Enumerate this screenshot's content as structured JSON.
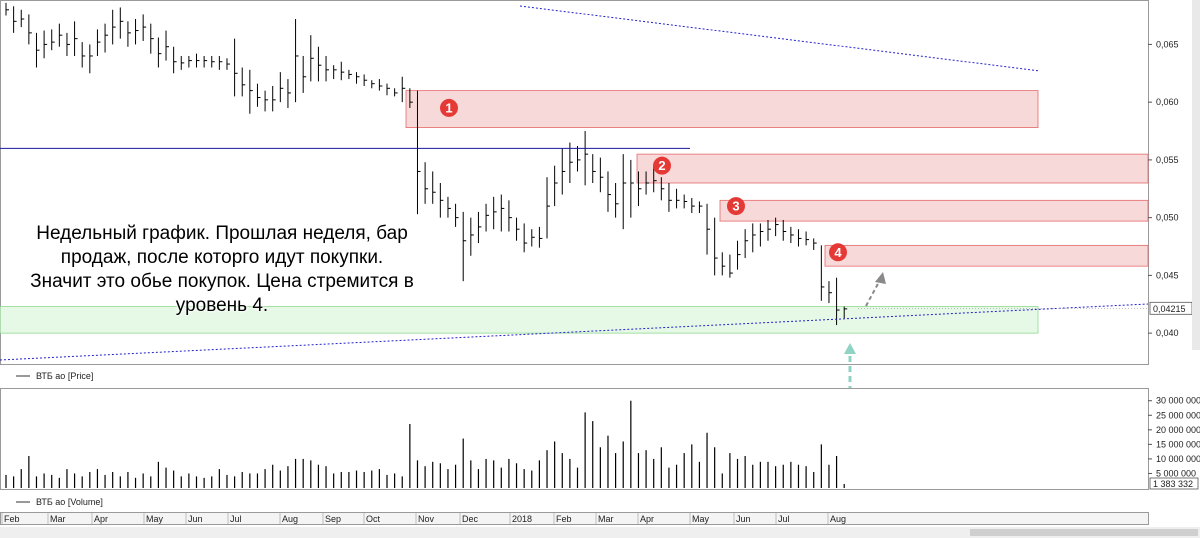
{
  "chart_data": {
    "type": "ohlc",
    "timeframe": "weekly",
    "price_panel": {
      "legend": "ВТБ ао [Price]",
      "y_ticks": [
        "0,065",
        "0,060",
        "0,055",
        "0,050",
        "0,045",
        "0,040"
      ],
      "y_tick_values": [
        0.065,
        0.06,
        0.055,
        0.05,
        0.045,
        0.04
      ],
      "ylim": [
        0.0375,
        0.0685
      ],
      "last_price_label": "0,04215",
      "last_price": 0.04215,
      "bars": [
        [
          0.0686,
          0.0675,
          0.068
        ],
        [
          0.0683,
          0.066,
          0.067
        ],
        [
          0.068,
          0.0665,
          0.0672
        ],
        [
          0.0676,
          0.065,
          0.066
        ],
        [
          0.066,
          0.063,
          0.0645
        ],
        [
          0.0662,
          0.0638,
          0.065
        ],
        [
          0.0663,
          0.0645,
          0.0652
        ],
        [
          0.0668,
          0.0648,
          0.0658
        ],
        [
          0.066,
          0.064,
          0.065
        ],
        [
          0.067,
          0.064,
          0.0655
        ],
        [
          0.0652,
          0.063,
          0.064
        ],
        [
          0.065,
          0.0625,
          0.064
        ],
        [
          0.0663,
          0.064,
          0.0652
        ],
        [
          0.0668,
          0.0643,
          0.0658
        ],
        [
          0.068,
          0.065,
          0.0665
        ],
        [
          0.0682,
          0.0655,
          0.067
        ],
        [
          0.067,
          0.0648,
          0.066
        ],
        [
          0.0672,
          0.065,
          0.0662
        ],
        [
          0.0676,
          0.0653,
          0.0665
        ],
        [
          0.0668,
          0.0642,
          0.0655
        ],
        [
          0.0656,
          0.063,
          0.0642
        ],
        [
          0.0662,
          0.0636,
          0.0648
        ],
        [
          0.0648,
          0.0625,
          0.0635
        ],
        [
          0.064,
          0.0628,
          0.0634
        ],
        [
          0.064,
          0.063,
          0.0636
        ],
        [
          0.0642,
          0.063,
          0.0636
        ],
        [
          0.064,
          0.063,
          0.0636
        ],
        [
          0.064,
          0.063,
          0.0635
        ],
        [
          0.064,
          0.0628,
          0.0635
        ],
        [
          0.0638,
          0.0628,
          0.0633
        ],
        [
          0.0655,
          0.0605,
          0.0625
        ],
        [
          0.063,
          0.0605,
          0.0615
        ],
        [
          0.0628,
          0.059,
          0.061
        ],
        [
          0.0616,
          0.0596,
          0.0604
        ],
        [
          0.061,
          0.0592,
          0.0602
        ],
        [
          0.0614,
          0.0592,
          0.0602
        ],
        [
          0.0626,
          0.06,
          0.0612
        ],
        [
          0.062,
          0.0595,
          0.0608
        ],
        [
          0.0672,
          0.06,
          0.064
        ],
        [
          0.064,
          0.0608,
          0.0622
        ],
        [
          0.0658,
          0.0618,
          0.0638
        ],
        [
          0.0648,
          0.0618,
          0.0632
        ],
        [
          0.064,
          0.0618,
          0.0628
        ],
        [
          0.0632,
          0.062,
          0.0628
        ],
        [
          0.0635,
          0.0619,
          0.0626
        ],
        [
          0.0628,
          0.062,
          0.0624
        ],
        [
          0.0626,
          0.0616,
          0.0622
        ],
        [
          0.0624,
          0.0614,
          0.0619
        ],
        [
          0.0619,
          0.0612,
          0.0616
        ],
        [
          0.062,
          0.061,
          0.0614
        ],
        [
          0.0616,
          0.0606,
          0.0612
        ],
        [
          0.0612,
          0.0605,
          0.0608
        ],
        [
          0.0622,
          0.06,
          0.0612
        ],
        [
          0.0612,
          0.0595,
          0.06
        ],
        [
          0.061,
          0.0503,
          0.054
        ],
        [
          0.0548,
          0.0512,
          0.0525
        ],
        [
          0.054,
          0.0512,
          0.0522
        ],
        [
          0.053,
          0.05,
          0.0515
        ],
        [
          0.0518,
          0.05,
          0.0508
        ],
        [
          0.0512,
          0.0492,
          0.05
        ],
        [
          0.0505,
          0.0445,
          0.048
        ],
        [
          0.05,
          0.0467,
          0.0485
        ],
        [
          0.0505,
          0.0478,
          0.0492
        ],
        [
          0.0512,
          0.0488,
          0.0502
        ],
        [
          0.0518,
          0.049,
          0.0505
        ],
        [
          0.052,
          0.0488,
          0.0508
        ],
        [
          0.0515,
          0.0488,
          0.05
        ],
        [
          0.05,
          0.048,
          0.049
        ],
        [
          0.0495,
          0.047,
          0.0478
        ],
        [
          0.049,
          0.0475,
          0.0483
        ],
        [
          0.0492,
          0.0474,
          0.0482
        ],
        [
          0.0535,
          0.0482,
          0.051
        ],
        [
          0.0545,
          0.051,
          0.053
        ],
        [
          0.056,
          0.052,
          0.054
        ],
        [
          0.0565,
          0.053,
          0.0548
        ],
        [
          0.0562,
          0.054,
          0.055
        ],
        [
          0.0575,
          0.0528,
          0.0555
        ],
        [
          0.0555,
          0.053,
          0.054
        ],
        [
          0.0552,
          0.0522,
          0.0535
        ],
        [
          0.054,
          0.0505,
          0.052
        ],
        [
          0.053,
          0.05,
          0.0512
        ],
        [
          0.0555,
          0.049,
          0.053
        ],
        [
          0.055,
          0.05,
          0.053
        ],
        [
          0.054,
          0.051,
          0.0525
        ],
        [
          0.054,
          0.052,
          0.053
        ],
        [
          0.0545,
          0.0522,
          0.0532
        ],
        [
          0.0535,
          0.0515,
          0.0525
        ],
        [
          0.053,
          0.0505,
          0.0515
        ],
        [
          0.0525,
          0.0508,
          0.0515
        ],
        [
          0.052,
          0.0508,
          0.0514
        ],
        [
          0.0517,
          0.0504,
          0.051
        ],
        [
          0.0514,
          0.0504,
          0.051
        ],
        [
          0.0512,
          0.0468,
          0.049
        ],
        [
          0.05,
          0.045,
          0.0465
        ],
        [
          0.047,
          0.045,
          0.0458
        ],
        [
          0.0468,
          0.0448,
          0.0452
        ],
        [
          0.048,
          0.0455,
          0.0468
        ],
        [
          0.049,
          0.0465,
          0.048
        ],
        [
          0.0495,
          0.047,
          0.0485
        ],
        [
          0.0495,
          0.0475,
          0.0488
        ],
        [
          0.0498,
          0.048,
          0.049
        ],
        [
          0.05,
          0.0484,
          0.0494
        ],
        [
          0.0498,
          0.048,
          0.0488
        ],
        [
          0.0492,
          0.0478,
          0.0485
        ],
        [
          0.049,
          0.0475,
          0.0482
        ],
        [
          0.0488,
          0.0476,
          0.0481
        ],
        [
          0.0482,
          0.0472,
          0.0478
        ],
        [
          0.0476,
          0.0428,
          0.044
        ],
        [
          0.0445,
          0.0426,
          0.0435
        ],
        [
          0.0448,
          0.0407,
          0.042
        ],
        [
          0.0423,
          0.0413,
          0.0421
        ]
      ],
      "zones": [
        {
          "label": "1",
          "from": 0.0578,
          "to": 0.061,
          "color": "#f4b8b8"
        },
        {
          "label": "2",
          "from": 0.053,
          "to": 0.0555,
          "color": "#f4b8b8"
        },
        {
          "label": "3",
          "from": 0.0497,
          "to": 0.0515,
          "color": "#f4b8b8"
        },
        {
          "label": "4",
          "from": 0.0458,
          "to": 0.0476,
          "color": "#f4b8b8"
        },
        {
          "label": "",
          "from": 0.04,
          "to": 0.0423,
          "color": "#b8e8b8"
        }
      ],
      "horizontal_line": 0.056
    },
    "volume_panel": {
      "legend": "ВТБ ао [Volume]",
      "y_ticks": [
        "30 000 000",
        "25 000 000",
        "20 000 000",
        "15 000 000",
        "10 000 000",
        "5 000 000"
      ],
      "y_tick_values": [
        30000000,
        25000000,
        20000000,
        15000000,
        10000000,
        5000000
      ],
      "ylim": [
        0,
        33000000
      ],
      "last_volume_label": "1 383 332",
      "volumes": [
        4.5,
        4.0,
        6.5,
        11,
        4.0,
        5.0,
        4.5,
        3.5,
        6.5,
        5.0,
        4.0,
        5.5,
        6.5,
        4.5,
        5.5,
        4.0,
        5.5,
        3.5,
        5.0,
        4.0,
        9.0,
        7.0,
        6.0,
        4.0,
        5.0,
        4.0,
        3.5,
        4.0,
        6.5,
        4.5,
        4.0,
        5.5,
        5.0,
        5.0,
        6.5,
        8.0,
        6.0,
        7.5,
        10,
        10,
        9.5,
        8.0,
        7.5,
        5.0,
        5.5,
        5.5,
        6.0,
        5.5,
        6.0,
        6.5,
        4.5,
        5.0,
        4.0,
        22,
        9.5,
        7.5,
        9.0,
        8.5,
        6.5,
        8.0,
        17,
        9.5,
        6.5,
        10,
        9.5,
        7.0,
        10,
        8.5,
        6.5,
        6.0,
        9.5,
        13,
        16,
        12,
        10,
        7.0,
        26,
        23,
        14,
        18,
        12,
        16,
        30,
        12,
        13,
        10,
        14,
        7.0,
        8.0,
        12,
        15,
        9.0,
        19,
        14,
        5.0,
        12,
        10,
        11,
        8.0,
        9.0,
        9.0,
        7.5,
        8.0,
        9.0,
        8.0,
        7.5,
        5.5,
        15,
        8.0,
        11,
        1.383332
      ]
    },
    "x_months": [
      "Feb",
      "Mar",
      "Apr",
      "May",
      "Jun",
      "Jul",
      "Aug",
      "Sep",
      "Oct",
      "Nov",
      "Dec",
      "2018",
      "Feb",
      "Mar",
      "Apr",
      "May",
      "Jun",
      "Jul",
      "Aug"
    ]
  },
  "annotation": {
    "lines": [
      "Недельный график. Прошлая неделя, бар",
      "продаж, после которго идут покупки.",
      "Значит это обье покупок. Цена стремится в",
      "уровень 4."
    ]
  },
  "colors": {
    "zone_red": "#f5c9c9",
    "zone_red_edge": "#e46a6a",
    "zone_green": "#dcf5dc",
    "zone_green_edge": "#8ed98e",
    "marker": "#e53935",
    "trend_dotted": "#2222cc",
    "h_line": "#1a1aa0",
    "arrow_gray": "#8a8a8a",
    "arrow_teal": "#8fd3c4"
  }
}
